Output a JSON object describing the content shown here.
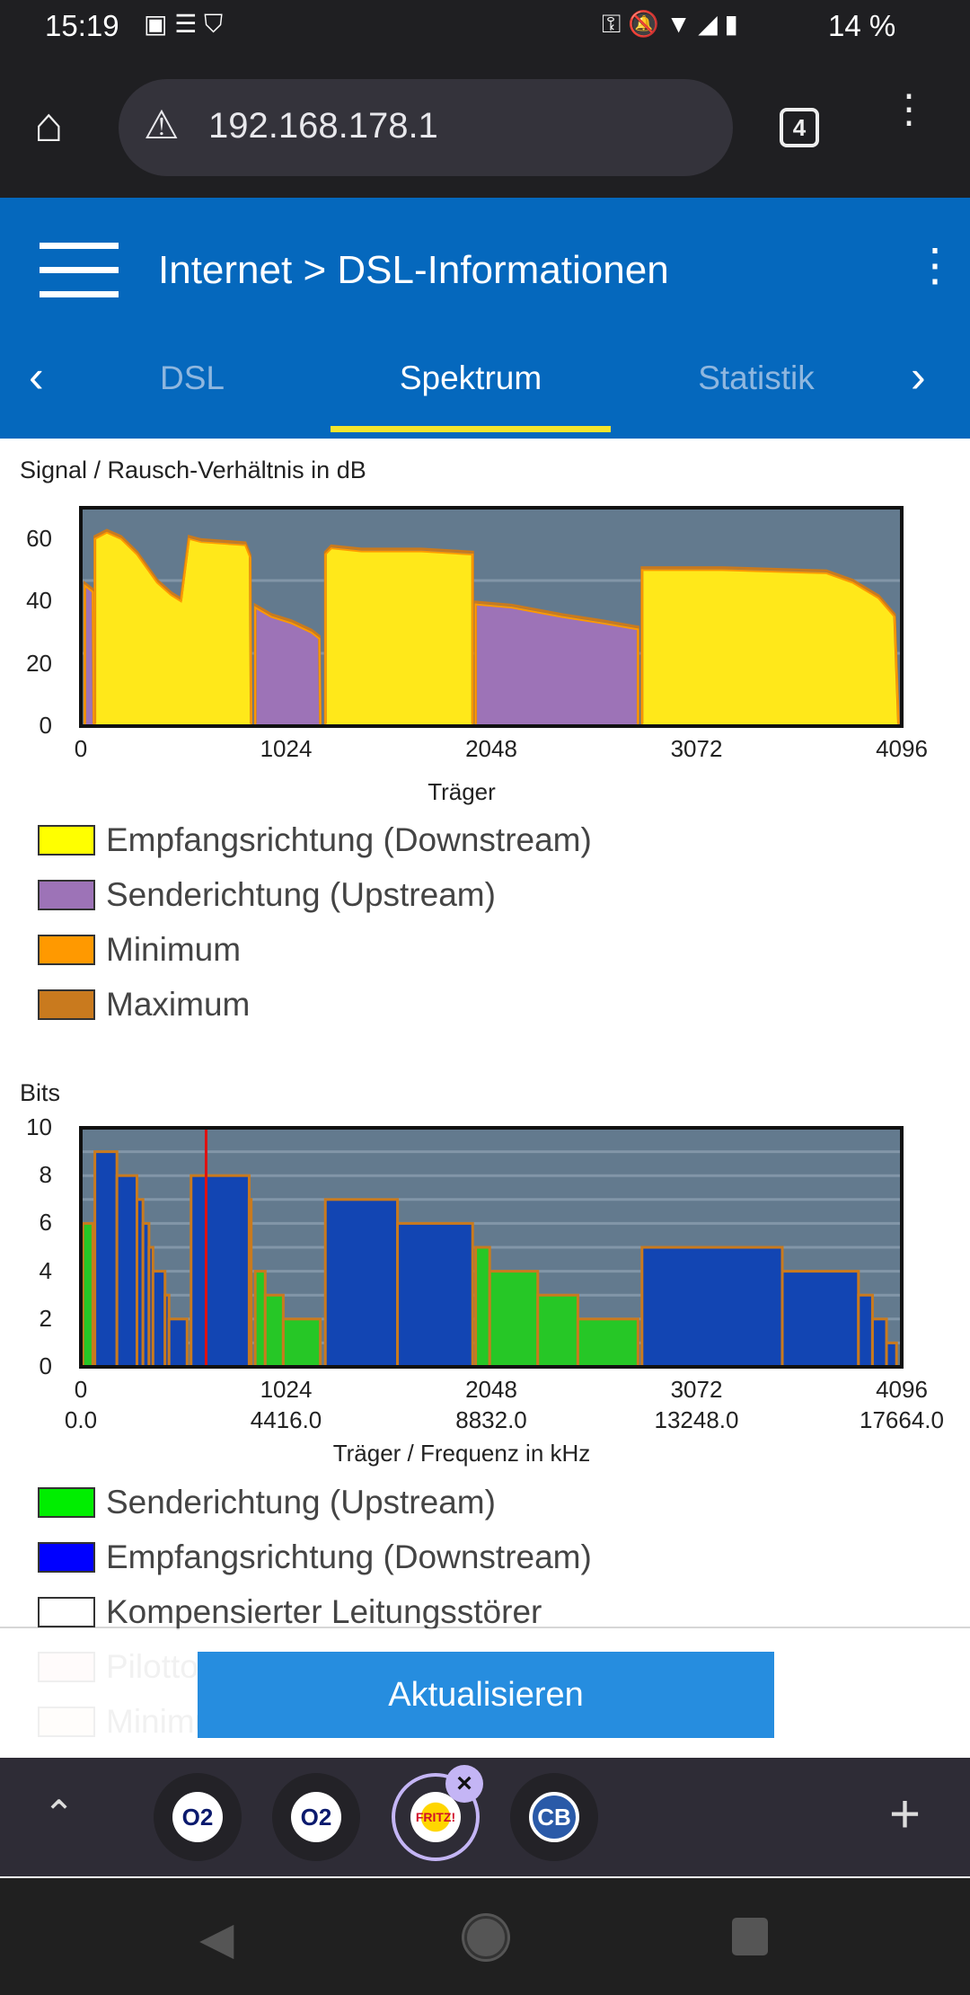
{
  "status": {
    "time": "15:19",
    "battery": "14 %"
  },
  "browser": {
    "url": "192.168.178.1",
    "tab_count": "4"
  },
  "header": {
    "breadcrumb_root": "Internet",
    "breadcrumb_sep": ">",
    "breadcrumb_page": "DSL-Informationen",
    "tabs": [
      {
        "label": "DSL",
        "active": false
      },
      {
        "label": "Spektrum",
        "active": true
      },
      {
        "label": "Statistik",
        "active": false
      }
    ]
  },
  "colors": {
    "header": "#0568bd",
    "tab_indicator": "#f5e52b",
    "downstream_snr": "#ffe81a",
    "upstream_snr": "#9d73b7",
    "minimum": "#ff9900",
    "maximum": "#c97a1e",
    "upstream_bits": "#26c726",
    "downstream_bits": "#1245b3",
    "plot_bg": "#637a8e",
    "button": "#268ddf"
  },
  "chart_data": [
    {
      "type": "area",
      "title": "Signal / Rausch-Verhältnis in dB",
      "xlabel": "Träger",
      "ylabel": "",
      "xlim": [
        0,
        4096
      ],
      "ylim": [
        0,
        70
      ],
      "yticks": [
        "0",
        "20",
        "40",
        "60"
      ],
      "xticks": [
        "0",
        "1024",
        "2048",
        "3072",
        "4096"
      ],
      "series": [
        {
          "name": "Empfangsrichtung (Downstream)",
          "color": "#ffe81a",
          "bands": [
            [
              [
                70,
                0
              ],
              [
                70,
                60
              ],
              [
                130,
                62
              ],
              [
                200,
                60
              ],
              [
                280,
                55
              ],
              [
                380,
                46
              ],
              [
                450,
                42
              ],
              [
                500,
                40
              ],
              [
                540,
                60
              ],
              [
                600,
                59
              ],
              [
                820,
                58
              ],
              [
                845,
                54
              ],
              [
                850,
                0
              ]
            ],
            [
              [
                1220,
                0
              ],
              [
                1220,
                55
              ],
              [
                1250,
                57
              ],
              [
                1400,
                56
              ],
              [
                1700,
                56
              ],
              [
                1955,
                55
              ],
              [
                1955,
                0
              ]
            ],
            [
              [
                2800,
                0
              ],
              [
                2800,
                50
              ],
              [
                3200,
                50
              ],
              [
                3720,
                49
              ],
              [
                3850,
                46
              ],
              [
                3980,
                41
              ],
              [
                4060,
                35
              ],
              [
                4080,
                0
              ]
            ]
          ]
        },
        {
          "name": "Senderichtung (Upstream)",
          "color": "#9d73b7",
          "bands": [
            [
              [
                20,
                0
              ],
              [
                20,
                45
              ],
              [
                60,
                43
              ],
              [
                65,
                0
              ]
            ],
            [
              [
                870,
                0
              ],
              [
                870,
                38
              ],
              [
                950,
                35
              ],
              [
                1050,
                33
              ],
              [
                1150,
                30
              ],
              [
                1190,
                28
              ],
              [
                1195,
                0
              ]
            ],
            [
              [
                1970,
                0
              ],
              [
                1970,
                39
              ],
              [
                2150,
                38
              ],
              [
                2400,
                35
              ],
              [
                2600,
                33
              ],
              [
                2780,
                31
              ],
              [
                2780,
                0
              ]
            ]
          ]
        }
      ],
      "legend": [
        "Empfangsrichtung (Downstream)",
        "Senderichtung (Upstream)",
        "Minimum",
        "Maximum"
      ]
    },
    {
      "type": "area",
      "title": "Bits",
      "xlabel": "Träger / Frequenz in kHz",
      "xlim": [
        0,
        4096
      ],
      "ylim": [
        0,
        10
      ],
      "yticks": [
        "0",
        "2",
        "4",
        "6",
        "8",
        "10"
      ],
      "xticks": [
        "0",
        "1024",
        "2048",
        "3072",
        "4096"
      ],
      "xticks2": [
        "0.0",
        "4416.0",
        "8832.0",
        "13248.0",
        "17664.0"
      ],
      "marker_carrier": 625,
      "series": [
        {
          "name": "Senderichtung (Upstream)",
          "color": "#26c726",
          "steps": [
            [
              10,
              60,
              6
            ],
            [
              870,
              920,
              4
            ],
            [
              920,
              1010,
              3
            ],
            [
              1010,
              1195,
              2
            ],
            [
              1970,
              2040,
              5
            ],
            [
              2040,
              2280,
              4
            ],
            [
              2280,
              2480,
              3
            ],
            [
              2480,
              2780,
              2
            ]
          ]
        },
        {
          "name": "Empfangsrichtung (Downstream)",
          "color": "#1245b3",
          "steps": [
            [
              70,
              180,
              9
            ],
            [
              180,
              280,
              8
            ],
            [
              280,
              310,
              7
            ],
            [
              310,
              340,
              6
            ],
            [
              340,
              360,
              5
            ],
            [
              360,
              420,
              4
            ],
            [
              420,
              440,
              3
            ],
            [
              440,
              530,
              2
            ],
            [
              550,
              840,
              8
            ],
            [
              840,
              850,
              7
            ],
            [
              1220,
              1580,
              7
            ],
            [
              1580,
              1955,
              6
            ],
            [
              2800,
              3500,
              5
            ],
            [
              3500,
              3880,
              4
            ],
            [
              3880,
              3950,
              3
            ],
            [
              3950,
              4020,
              2
            ],
            [
              4020,
              4070,
              1
            ]
          ]
        }
      ],
      "legend": [
        "Senderichtung (Upstream)",
        "Empfangsrichtung (Downstream)",
        "Kompensierter Leitungsstörer",
        "Pilotton",
        "Minimum"
      ]
    }
  ],
  "legend_colors": {
    "snr": [
      "#ffff00",
      "#9d73b7",
      "#ff9900",
      "#c97a1e"
    ],
    "bits": [
      "#00ee00",
      "#0000ff",
      "#ffffff",
      "#ffcccc",
      "#ffe6c8"
    ]
  },
  "button": {
    "label": "Aktualisieren"
  },
  "tabs_bar": {
    "tabs": [
      "O2",
      "O2",
      "FRITZ!",
      "CB"
    ]
  }
}
